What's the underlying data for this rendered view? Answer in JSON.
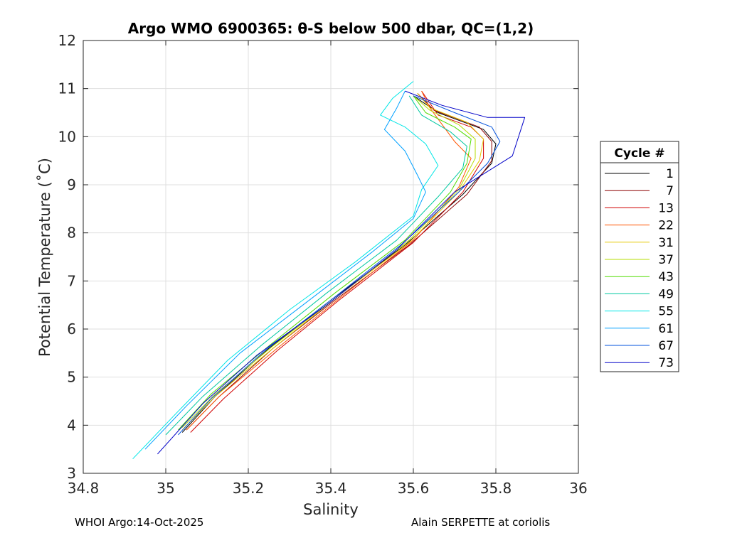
{
  "chart_data": {
    "type": "line",
    "title": "Argo WMO 6900365: θ-S below 500 dbar,  QC=(1,2)",
    "xlabel": "Salinity",
    "ylabel": "Potential Temperature (˚C)",
    "xlim": [
      34.8,
      36
    ],
    "ylim": [
      3,
      12
    ],
    "xticks": [
      34.8,
      35,
      35.2,
      35.4,
      35.6,
      35.8,
      36
    ],
    "xtick_labels": [
      "34.8",
      "35",
      "35.2",
      "35.4",
      "35.6",
      "35.8",
      "36"
    ],
    "yticks": [
      3,
      4,
      5,
      6,
      7,
      8,
      9,
      10,
      11,
      12
    ],
    "ytick_labels": [
      "3",
      "4",
      "5",
      "6",
      "7",
      "8",
      "9",
      "10",
      "11",
      "12"
    ],
    "grid": true,
    "legend": {
      "title": "Cycle #",
      "placement": "right"
    },
    "series": [
      {
        "name": "1",
        "color": "#000000",
        "points": [
          [
            35.04,
            3.85
          ],
          [
            35.12,
            4.6
          ],
          [
            35.25,
            5.6
          ],
          [
            35.4,
            6.6
          ],
          [
            35.58,
            7.75
          ],
          [
            35.72,
            8.8
          ],
          [
            35.79,
            9.45
          ],
          [
            35.8,
            9.85
          ],
          [
            35.77,
            10.15
          ],
          [
            35.66,
            10.5
          ],
          [
            35.6,
            10.85
          ]
        ]
      },
      {
        "name": "7",
        "color": "#8b0000",
        "points": [
          [
            35.05,
            3.9
          ],
          [
            35.13,
            4.6
          ],
          [
            35.26,
            5.6
          ],
          [
            35.41,
            6.6
          ],
          [
            35.59,
            7.75
          ],
          [
            35.73,
            8.8
          ],
          [
            35.79,
            9.5
          ],
          [
            35.79,
            9.9
          ],
          [
            35.76,
            10.2
          ],
          [
            35.65,
            10.55
          ],
          [
            35.61,
            10.9
          ]
        ]
      },
      {
        "name": "13",
        "color": "#d00000",
        "points": [
          [
            35.06,
            3.85
          ],
          [
            35.14,
            4.55
          ],
          [
            35.27,
            5.55
          ],
          [
            35.42,
            6.6
          ],
          [
            35.6,
            7.8
          ],
          [
            35.72,
            8.85
          ],
          [
            35.77,
            9.55
          ],
          [
            35.77,
            9.95
          ],
          [
            35.74,
            10.2
          ],
          [
            35.66,
            10.45
          ],
          [
            35.62,
            10.95
          ]
        ]
      },
      {
        "name": "22",
        "color": "#ff5500",
        "points": [
          [
            35.05,
            3.9
          ],
          [
            35.13,
            4.6
          ],
          [
            35.27,
            5.6
          ],
          [
            35.43,
            6.7
          ],
          [
            35.6,
            7.85
          ],
          [
            35.71,
            8.95
          ],
          [
            35.74,
            9.55
          ],
          [
            35.7,
            9.9
          ],
          [
            35.67,
            10.25
          ],
          [
            35.64,
            10.6
          ],
          [
            35.62,
            10.95
          ]
        ]
      },
      {
        "name": "31",
        "color": "#e6c800",
        "points": [
          [
            35.04,
            3.9
          ],
          [
            35.12,
            4.6
          ],
          [
            35.26,
            5.6
          ],
          [
            35.42,
            6.7
          ],
          [
            35.59,
            7.8
          ],
          [
            35.71,
            8.85
          ],
          [
            35.76,
            9.5
          ],
          [
            35.77,
            9.95
          ],
          [
            35.73,
            10.3
          ],
          [
            35.64,
            10.6
          ],
          [
            35.61,
            10.9
          ]
        ]
      },
      {
        "name": "37",
        "color": "#b4dc00",
        "points": [
          [
            35.04,
            3.95
          ],
          [
            35.12,
            4.65
          ],
          [
            35.26,
            5.65
          ],
          [
            35.42,
            6.7
          ],
          [
            35.59,
            7.85
          ],
          [
            35.71,
            8.9
          ],
          [
            35.75,
            9.55
          ],
          [
            35.75,
            9.95
          ],
          [
            35.71,
            10.25
          ],
          [
            35.64,
            10.55
          ],
          [
            35.6,
            10.85
          ]
        ]
      },
      {
        "name": "43",
        "color": "#50dc00",
        "points": [
          [
            35.03,
            3.9
          ],
          [
            35.11,
            4.65
          ],
          [
            35.25,
            5.65
          ],
          [
            35.41,
            6.75
          ],
          [
            35.58,
            7.85
          ],
          [
            35.69,
            8.85
          ],
          [
            35.73,
            9.45
          ],
          [
            35.74,
            9.95
          ],
          [
            35.7,
            10.2
          ],
          [
            35.63,
            10.5
          ],
          [
            35.6,
            10.85
          ]
        ]
      },
      {
        "name": "49",
        "color": "#00c8a0",
        "points": [
          [
            35.0,
            3.8
          ],
          [
            35.09,
            4.6
          ],
          [
            35.23,
            5.65
          ],
          [
            35.39,
            6.75
          ],
          [
            35.56,
            7.85
          ],
          [
            35.66,
            8.75
          ],
          [
            35.72,
            9.35
          ],
          [
            35.73,
            9.8
          ],
          [
            35.69,
            10.1
          ],
          [
            35.62,
            10.45
          ],
          [
            35.59,
            10.85
          ]
        ]
      },
      {
        "name": "55",
        "color": "#00e6e6",
        "points": [
          [
            34.92,
            3.3
          ],
          [
            35.02,
            4.2
          ],
          [
            35.15,
            5.35
          ],
          [
            35.3,
            6.4
          ],
          [
            35.46,
            7.4
          ],
          [
            35.6,
            8.35
          ],
          [
            35.62,
            8.9
          ],
          [
            35.66,
            9.4
          ],
          [
            35.63,
            9.85
          ],
          [
            35.58,
            10.2
          ],
          [
            35.52,
            10.45
          ],
          [
            35.55,
            10.8
          ],
          [
            35.6,
            11.15
          ]
        ]
      },
      {
        "name": "61",
        "color": "#00a0ff",
        "points": [
          [
            34.95,
            3.5
          ],
          [
            35.05,
            4.4
          ],
          [
            35.18,
            5.5
          ],
          [
            35.34,
            6.55
          ],
          [
            35.5,
            7.6
          ],
          [
            35.6,
            8.3
          ],
          [
            35.63,
            8.85
          ],
          [
            35.61,
            9.2
          ],
          [
            35.58,
            9.7
          ],
          [
            35.53,
            10.15
          ],
          [
            35.56,
            10.6
          ],
          [
            35.58,
            10.95
          ]
        ]
      },
      {
        "name": "67",
        "color": "#0050dc",
        "points": [
          [
            35.03,
            3.8
          ],
          [
            35.11,
            4.55
          ],
          [
            35.24,
            5.55
          ],
          [
            35.4,
            6.6
          ],
          [
            35.57,
            7.75
          ],
          [
            35.71,
            8.85
          ],
          [
            35.78,
            9.45
          ],
          [
            35.81,
            9.9
          ],
          [
            35.79,
            10.2
          ],
          [
            35.7,
            10.5
          ],
          [
            35.6,
            10.85
          ]
        ]
      },
      {
        "name": "73",
        "color": "#0000c8",
        "points": [
          [
            34.98,
            3.4
          ],
          [
            35.09,
            4.45
          ],
          [
            35.22,
            5.45
          ],
          [
            35.39,
            6.5
          ],
          [
            35.56,
            7.65
          ],
          [
            35.7,
            8.85
          ],
          [
            35.84,
            9.6
          ],
          [
            35.87,
            10.4
          ],
          [
            35.78,
            10.4
          ],
          [
            35.67,
            10.65
          ],
          [
            35.58,
            10.95
          ]
        ]
      }
    ]
  },
  "footer": {
    "left": "WHOI Argo:14-Oct-2025",
    "right": "Alain SERPETTE at coriolis"
  }
}
